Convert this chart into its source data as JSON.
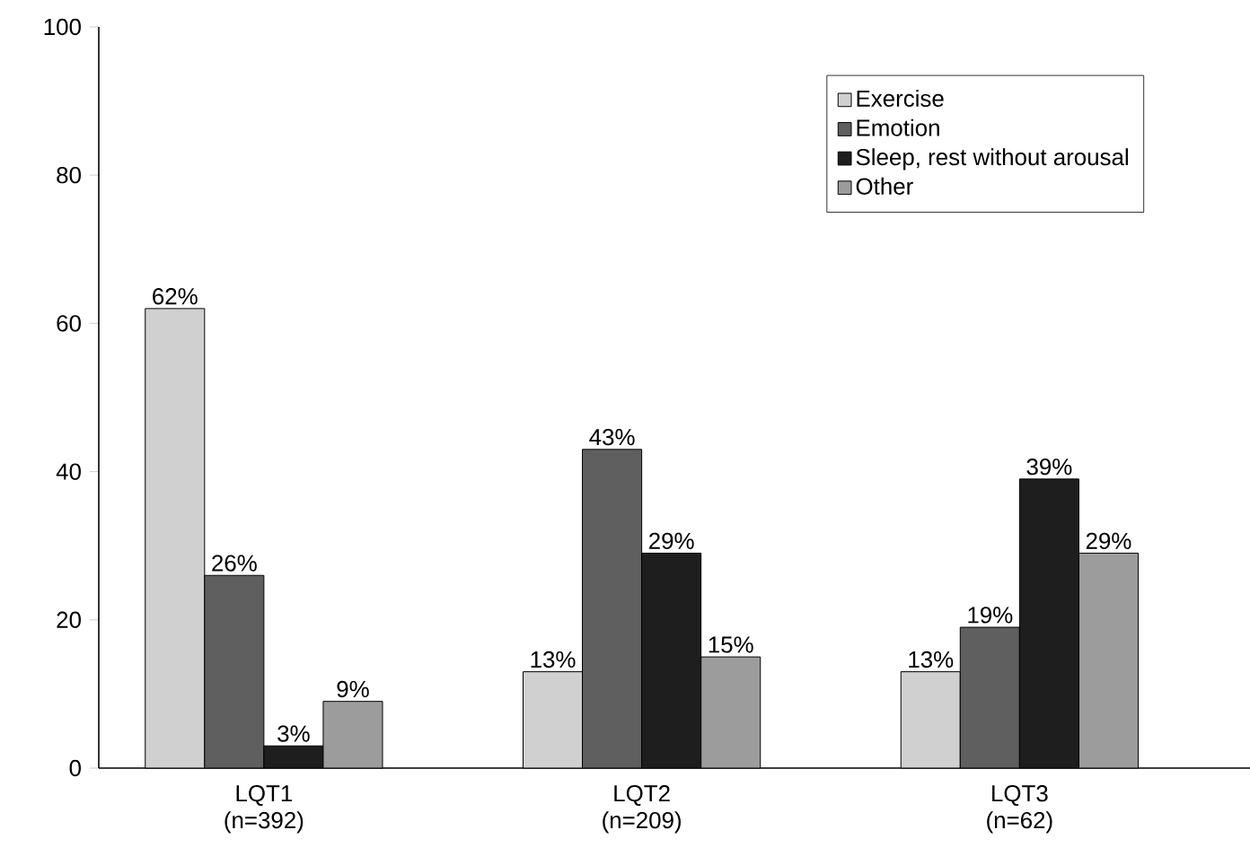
{
  "chart_data": {
    "type": "bar",
    "categories": [
      "LQT1 (n=392)",
      "LQT2 (n=209)",
      "LQT3 (n=62)"
    ],
    "series": [
      {
        "name": "Exercise",
        "color": "#d0d0d0",
        "values": [
          62,
          13,
          13
        ],
        "value_labels": [
          "62%",
          "13%",
          "13%"
        ]
      },
      {
        "name": "Emotion",
        "color": "#5f5f5f",
        "values": [
          26,
          43,
          19
        ],
        "value_labels": [
          "26%",
          "43%",
          "19%"
        ]
      },
      {
        "name": "Sleep, rest without arousal",
        "color": "#1e1e1e",
        "values": [
          3,
          29,
          39
        ],
        "value_labels": [
          "3%",
          "29%",
          "39%"
        ]
      },
      {
        "name": "Other",
        "color": "#9c9c9c",
        "values": [
          9,
          15,
          29
        ],
        "value_labels": [
          "9%",
          "15%",
          "29%"
        ]
      }
    ],
    "ylim": [
      0,
      100
    ],
    "yticks": [
      0,
      20,
      40,
      60,
      80,
      100
    ],
    "legend": "top right",
    "grid": false
  }
}
